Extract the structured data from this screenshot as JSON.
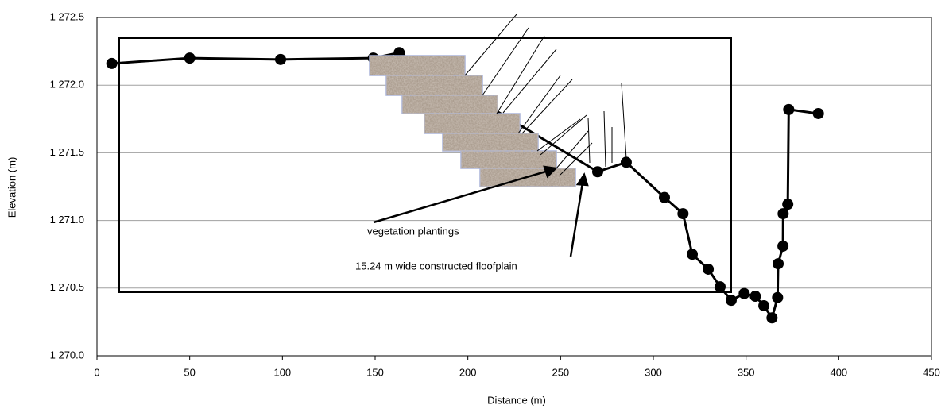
{
  "chart_data": {
    "type": "line",
    "x_label": "Distance (m)",
    "y_label": "Elevation (m)",
    "x": [
      8,
      50,
      99,
      149,
      163,
      270,
      285.4,
      306,
      316,
      321,
      329.6,
      336,
      342,
      349,
      355,
      359.6,
      364,
      367,
      367.3,
      369.9,
      370,
      372.5,
      373,
      389
    ],
    "series": [
      {
        "color": "#000000",
        "values": [
          1272.16,
          1272.2,
          1272.19,
          1272.2,
          1272.24,
          1271.36,
          1271.43,
          1271.17,
          1271.05,
          1270.75,
          1270.64,
          1270.51,
          1270.41,
          1270.46,
          1270.44,
          1270.37,
          1270.28,
          1270.43,
          1270.68,
          1270.81,
          1271.05,
          1271.12,
          1271.82,
          1271.79
        ]
      }
    ],
    "xlim": [
      0,
      450
    ],
    "xticks": [
      0,
      50,
      100,
      150,
      200,
      250,
      300,
      350,
      400,
      450
    ],
    "ylim": [
      1270,
      1272.5
    ],
    "yticks": [
      {
        "value": 1270,
        "label": "1 270.0"
      },
      {
        "value": 1270.5,
        "label": "1 270.5"
      },
      {
        "value": 1271,
        "label": "1 271.0"
      },
      {
        "value": 1271.5,
        "label": "1 271.5"
      },
      {
        "value": 1272,
        "label": "1 272.0"
      },
      {
        "value": 1272.5,
        "label": "1 272.5"
      }
    ],
    "grid": true,
    "annotations": [
      "vegetation plantings",
      "15.24 m wide constructed floofplain"
    ]
  }
}
